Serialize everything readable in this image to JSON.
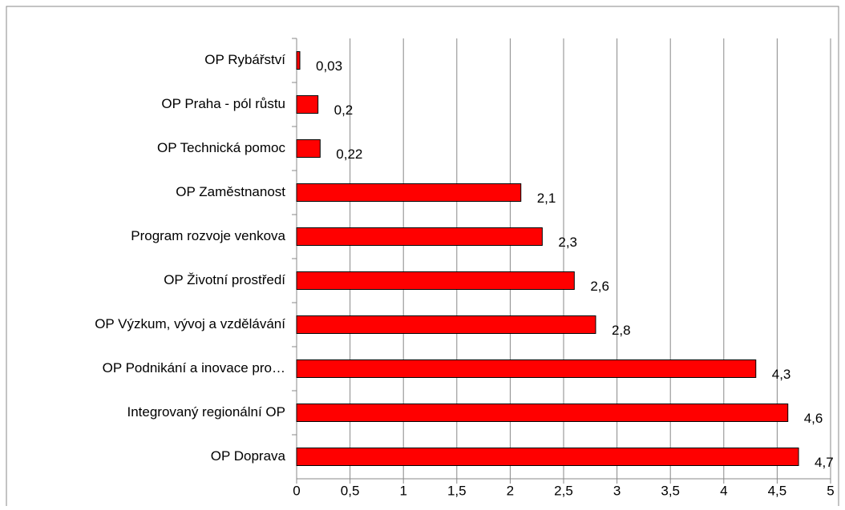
{
  "chart_data": {
    "type": "bar",
    "orientation": "horizontal",
    "categories": [
      "OP Rybářství",
      "OP Praha - pól růstu",
      "OP Technická pomoc",
      "OP Zaměstnanost",
      "Program rozvoje venkova",
      "OP Životní prostředí",
      "OP Výzkum, vývoj a vzdělávání",
      "OP Podnikání a inovace pro…",
      "Integrovaný regionální OP",
      "OP Doprava"
    ],
    "values": [
      0.03,
      0.2,
      0.22,
      2.1,
      2.3,
      2.6,
      2.8,
      4.3,
      4.6,
      4.7
    ],
    "value_labels": [
      "0,03",
      "0,2",
      "0,22",
      "2,1",
      "2,3",
      "2,6",
      "2,8",
      "4,3",
      "4,6",
      "4,7"
    ],
    "color": "#ff0000",
    "xlim": [
      0,
      5
    ],
    "xticks": [
      0,
      {
        "value": 0.5,
        "label": "0,5"
      },
      1,
      {
        "value": 1.5,
        "label": "1,5"
      },
      2,
      {
        "value": 2.5,
        "label": "2,5"
      },
      3,
      {
        "value": 3.5,
        "label": "3,5"
      },
      4,
      {
        "value": 4.5,
        "label": "4,5"
      },
      5
    ],
    "grid": true
  }
}
